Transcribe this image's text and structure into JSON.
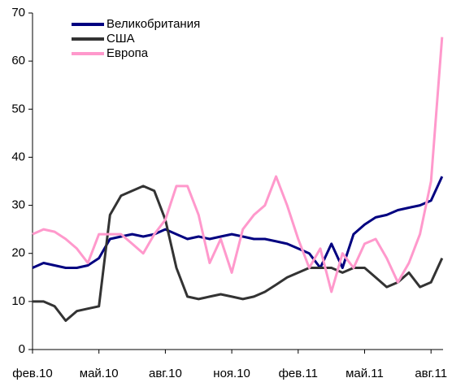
{
  "chart_data": {
    "type": "line",
    "categories": [
      "фев.10",
      null,
      null,
      null,
      null,
      null,
      "май.10",
      null,
      null,
      null,
      null,
      null,
      "авг.10",
      null,
      null,
      null,
      null,
      null,
      "ноя.10",
      null,
      null,
      null,
      null,
      null,
      "фев.11",
      null,
      null,
      null,
      null,
      null,
      "май.11",
      null,
      null,
      null,
      null,
      null,
      "авг.11",
      null
    ],
    "series": [
      {
        "name": "Великобритания",
        "color": "#000080",
        "values": [
          17,
          18,
          17.5,
          17,
          17,
          17.5,
          19,
          23,
          23.5,
          24,
          23.5,
          24,
          25,
          24,
          23,
          23.5,
          23,
          23.5,
          24,
          23.5,
          23,
          23,
          22.5,
          22,
          21,
          20,
          17,
          22,
          17,
          24,
          26,
          27.5,
          28,
          29,
          29.5,
          30,
          31,
          36
        ]
      },
      {
        "name": "США",
        "color": "#333333",
        "values": [
          10,
          10,
          9,
          6,
          8,
          8.5,
          9,
          28,
          32,
          33,
          34,
          33,
          27,
          17,
          11,
          10.5,
          11,
          11.5,
          11,
          10.5,
          11,
          12,
          13.5,
          15,
          16,
          17,
          17,
          17,
          16,
          17,
          17,
          15,
          13,
          14,
          16,
          13,
          14,
          19
        ]
      },
      {
        "name": "Европа",
        "color": "#ff99cc",
        "values": [
          24,
          25,
          24.5,
          23,
          21,
          18,
          24,
          24,
          24,
          22,
          20,
          24,
          27,
          34,
          34,
          28,
          18,
          23,
          16,
          25,
          28,
          30,
          36,
          30,
          23,
          17,
          21,
          12,
          20,
          17,
          22,
          23,
          19,
          14,
          18,
          24,
          35,
          65
        ]
      }
    ],
    "ylim": [
      0,
      70
    ],
    "yticks": [
      0,
      10,
      20,
      30,
      40,
      50,
      60,
      70
    ],
    "legend": "top-left"
  }
}
